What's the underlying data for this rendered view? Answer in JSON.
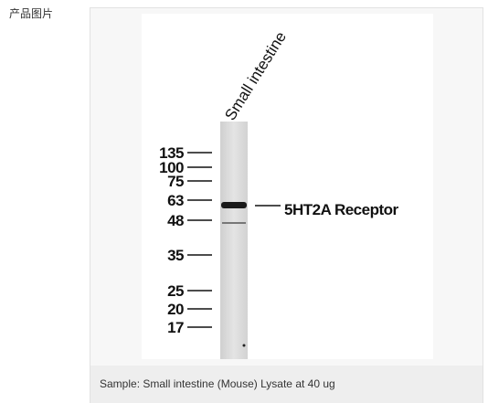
{
  "section_label": "产品图片",
  "image": {
    "lane_label": "Small intestine",
    "markers": [
      135,
      100,
      75,
      63,
      48,
      35,
      25,
      20,
      17
    ],
    "band_label": "5HT2A Receptor"
  },
  "caption": "Sample: Small intestine (Mouse) Lysate at 40 ug"
}
